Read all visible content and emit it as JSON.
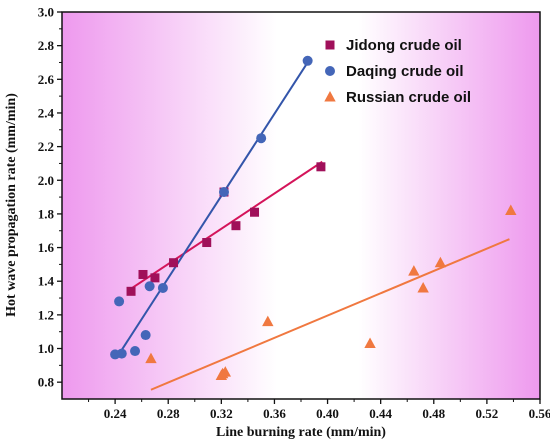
{
  "chart_data": {
    "type": "scatter",
    "xlabel": "Line burning rate (mm/min)",
    "ylabel": "Hot wave propagation rate (mm/min)",
    "xlim": [
      0.2,
      0.56
    ],
    "ylim": [
      0.7,
      3.0
    ],
    "xticks": [
      "0.24",
      "0.28",
      "0.32",
      "0.36",
      "0.40",
      "0.44",
      "0.48",
      "0.52",
      "0.56"
    ],
    "yticks": [
      "0.8",
      "1.0",
      "1.2",
      "1.4",
      "1.6",
      "1.8",
      "2.0",
      "2.2",
      "2.4",
      "2.6",
      "2.8",
      "3.0"
    ],
    "grid": false,
    "legend_position": "top-right",
    "background": "gradient white-to-magenta",
    "series": [
      {
        "name": "Jidong crude oil",
        "marker": "square",
        "color": "#a0105a",
        "line_color": "#d4145a",
        "x": [
          0.252,
          0.261,
          0.27,
          0.284,
          0.309,
          0.322,
          0.331,
          0.345,
          0.395
        ],
        "y": [
          1.34,
          1.44,
          1.42,
          1.51,
          1.63,
          1.93,
          1.73,
          1.81,
          2.08
        ],
        "fit": [
          [
            0.25,
            1.345
          ],
          [
            0.396,
            2.11
          ]
        ]
      },
      {
        "name": "Daqing crude oil",
        "marker": "circle",
        "color": "#4466b8",
        "line_color": "#3355aa",
        "x": [
          0.24,
          0.243,
          0.245,
          0.255,
          0.263,
          0.266,
          0.276,
          0.322,
          0.35,
          0.385
        ],
        "y": [
          0.965,
          1.28,
          0.97,
          0.985,
          1.08,
          1.37,
          1.36,
          1.93,
          2.25,
          2.71
        ],
        "fit": [
          [
            0.242,
            0.955
          ],
          [
            0.385,
            2.7
          ]
        ]
      },
      {
        "name": "Russian crude oil",
        "marker": "triangle",
        "color": "#f07840",
        "line_color": "#f07840",
        "x": [
          0.267,
          0.32,
          0.321,
          0.323,
          0.355,
          0.432,
          0.465,
          0.472,
          0.485,
          0.538
        ],
        "y": [
          0.94,
          0.84,
          0.85,
          0.86,
          1.16,
          1.03,
          1.46,
          1.36,
          1.51,
          1.82
        ],
        "fit": [
          [
            0.267,
            0.755
          ],
          [
            0.537,
            1.65
          ]
        ]
      }
    ]
  }
}
